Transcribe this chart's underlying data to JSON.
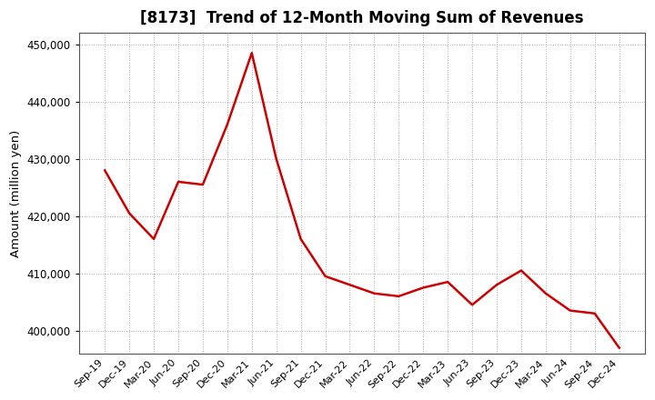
{
  "title": "[8173]  Trend of 12-Month Moving Sum of Revenues",
  "ylabel": "Amount (million yen)",
  "line_color": "#cc0000",
  "background_color": "#ffffff",
  "plot_bg_color": "#ffffff",
  "grid_color": "#aaaaaa",
  "ylim": [
    396000,
    452000
  ],
  "yticks": [
    400000,
    410000,
    420000,
    430000,
    440000,
    450000
  ],
  "labels": [
    "Sep-19",
    "Dec-19",
    "Mar-20",
    "Jun-20",
    "Sep-20",
    "Dec-20",
    "Mar-21",
    "Jun-21",
    "Sep-21",
    "Dec-21",
    "Mar-22",
    "Jun-22",
    "Sep-22",
    "Dec-22",
    "Mar-23",
    "Jun-23",
    "Sep-23",
    "Dec-23",
    "Mar-24",
    "Jun-24",
    "Sep-24",
    "Dec-24"
  ],
  "values": [
    428000,
    420500,
    416000,
    426000,
    425500,
    436000,
    448500,
    430000,
    416000,
    409500,
    408000,
    406500,
    406000,
    407500,
    408500,
    404500,
    408000,
    410500,
    406500,
    403500,
    403000,
    397000
  ]
}
